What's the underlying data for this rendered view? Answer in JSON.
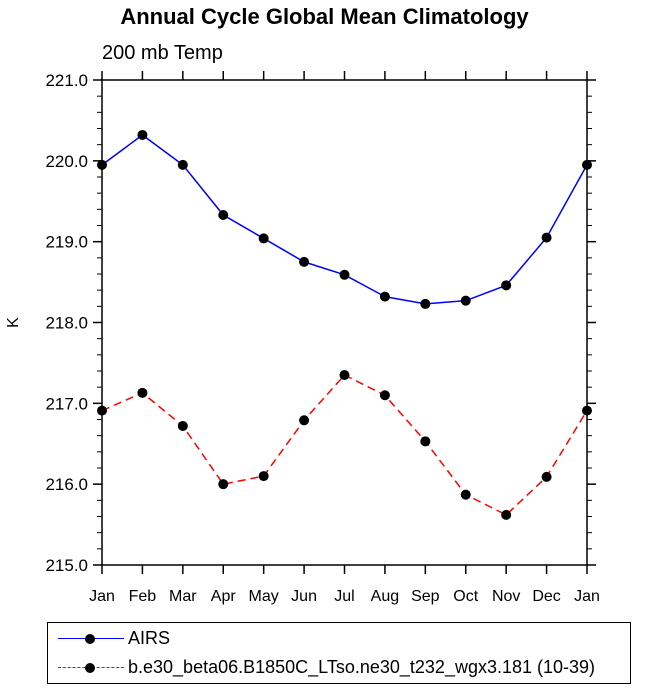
{
  "chart_data": {
    "type": "line",
    "title": "Annual Cycle Global Mean Climatology",
    "subtitle": "200 mb Temp",
    "xlabel": "",
    "ylabel": "K",
    "categories": [
      "Jan",
      "Feb",
      "Mar",
      "Apr",
      "May",
      "Jun",
      "Jul",
      "Aug",
      "Sep",
      "Oct",
      "Nov",
      "Dec",
      "Jan"
    ],
    "ylim": [
      215.0,
      221.0
    ],
    "yticks": [
      "215.0",
      "216.0",
      "217.0",
      "218.0",
      "219.0",
      "220.0",
      "221.0"
    ],
    "series": [
      {
        "name": "AIRS",
        "color": "#0000ff",
        "style": "solid",
        "values": [
          219.95,
          220.32,
          219.95,
          219.33,
          219.04,
          218.75,
          218.59,
          218.32,
          218.23,
          218.27,
          218.46,
          219.05,
          219.95
        ]
      },
      {
        "name": "b.e30_beta06.B1850C_LTso.ne30_t232_wgx3.181 (10-39)",
        "color": "#ff0000",
        "style": "dashed",
        "values": [
          216.91,
          217.13,
          216.72,
          216.0,
          216.1,
          216.79,
          217.35,
          217.1,
          216.53,
          215.87,
          215.62,
          216.09,
          216.91
        ]
      }
    ],
    "legend_position": "bottom"
  }
}
